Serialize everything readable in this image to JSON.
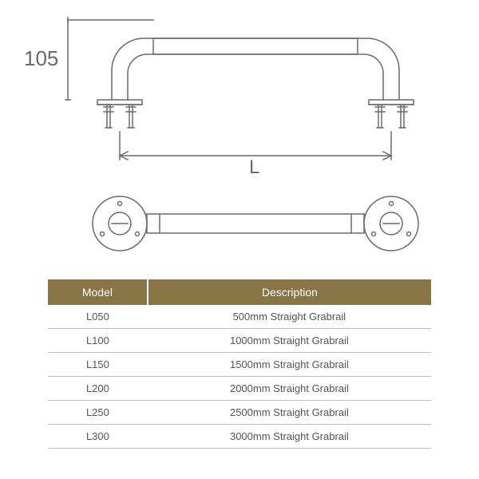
{
  "dimensions": {
    "height_label": "105",
    "length_label": "L"
  },
  "diagram_style": {
    "stroke": "#6a6a6a",
    "stroke_thin": 1.5,
    "stroke_med": 1.5,
    "fill": "none"
  },
  "table": {
    "header_bg": "#887444",
    "header_fg": "#ffffff",
    "row_fg": "#555555",
    "border_color": "#bdbdbd",
    "columns": [
      "Model",
      "Description"
    ],
    "rows": [
      [
        "L050",
        "500mm Straight Grabrail"
      ],
      [
        "L100",
        "1000mm Straight Grabrail"
      ],
      [
        "L150",
        "1500mm Straight Grabrail"
      ],
      [
        "L200",
        "2000mm Straight Grabrail"
      ],
      [
        "L250",
        "2500mm Straight Grabrail"
      ],
      [
        "L300",
        "3000mm Straight Grabrail"
      ]
    ]
  }
}
